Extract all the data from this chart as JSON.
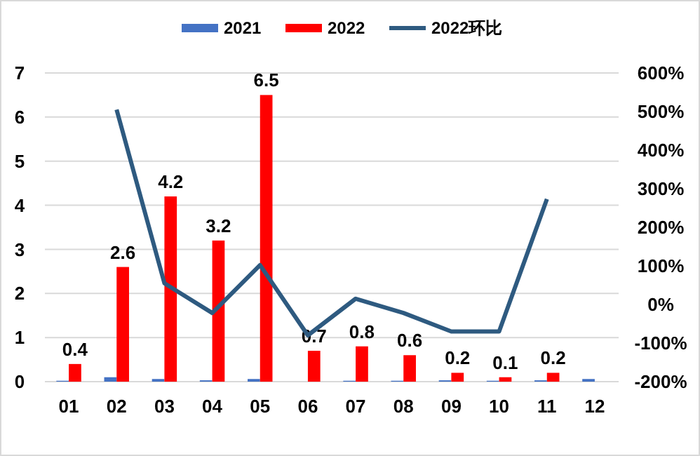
{
  "chart_data": {
    "type": "bar",
    "categories": [
      "01",
      "02",
      "03",
      "04",
      "05",
      "06",
      "07",
      "08",
      "09",
      "10",
      "11",
      "12"
    ],
    "series": [
      {
        "name": "2021",
        "color": "#4472c4",
        "values": [
          0.02,
          0.1,
          0.06,
          0.03,
          0.06,
          0,
          0.02,
          0.02,
          0.03,
          0.02,
          0.03,
          0.06
        ]
      },
      {
        "name": "2022",
        "color": "#ff0000",
        "values": [
          0.4,
          2.6,
          4.2,
          3.2,
          6.5,
          0.7,
          0.8,
          0.6,
          0.2,
          0.1,
          0.2,
          null
        ],
        "value_labels": [
          "0.4",
          "2.6",
          "4.2",
          "3.2",
          "6.5",
          "0.7",
          "0.8",
          "0.6",
          "0.2",
          "0.1",
          "0.2",
          null
        ]
      },
      {
        "name": "2022环比",
        "type": "line",
        "axis": "y2",
        "color": "#2e5a80",
        "values": [
          null,
          505,
          55,
          -22,
          102,
          -80,
          15,
          -22,
          -70,
          -70,
          273,
          null
        ]
      }
    ],
    "ylim": [
      0,
      7
    ],
    "yticks": [
      0,
      1,
      2,
      3,
      4,
      5,
      6,
      7
    ],
    "y2lim": [
      -200,
      600
    ],
    "y2ticks": [
      {
        "value": -200,
        "label": "-200%"
      },
      {
        "value": -100,
        "label": "-100%"
      },
      {
        "value": 0,
        "label": "0%"
      },
      {
        "value": 100,
        "label": "100%"
      },
      {
        "value": 200,
        "label": "200%"
      },
      {
        "value": 300,
        "label": "300%"
      },
      {
        "value": 400,
        "label": "400%"
      },
      {
        "value": 500,
        "label": "500%"
      },
      {
        "value": 600,
        "label": "600%"
      }
    ],
    "grid": "y",
    "legend": "top",
    "marker": "none",
    "line_style": "solid"
  }
}
